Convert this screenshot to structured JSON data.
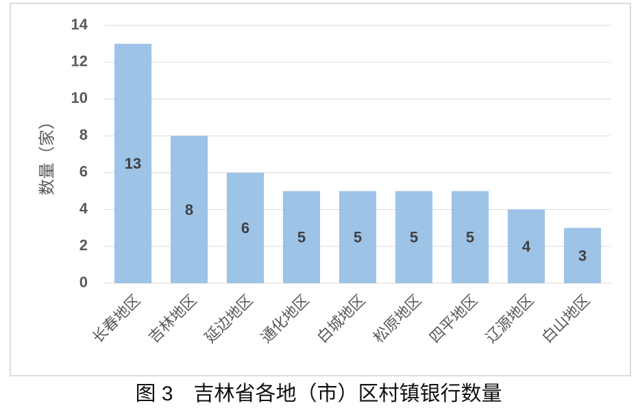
{
  "chart_data": {
    "type": "bar",
    "caption": "图 3　吉林省各地（市）区村镇银行数量",
    "y_label": "数量（家）",
    "categories": [
      "长春地区",
      "吉林地区",
      "延边地区",
      "通化地区",
      "白城地区",
      "松原地区",
      "四平地区",
      "辽源地区",
      "白山地区"
    ],
    "values": [
      13,
      8,
      6,
      5,
      5,
      5,
      5,
      4,
      3
    ],
    "color": "#9dc3e6",
    "ylim": [
      0,
      14
    ],
    "yticks": [
      0,
      2,
      4,
      6,
      8,
      10,
      12,
      14
    ],
    "grid": true
  }
}
